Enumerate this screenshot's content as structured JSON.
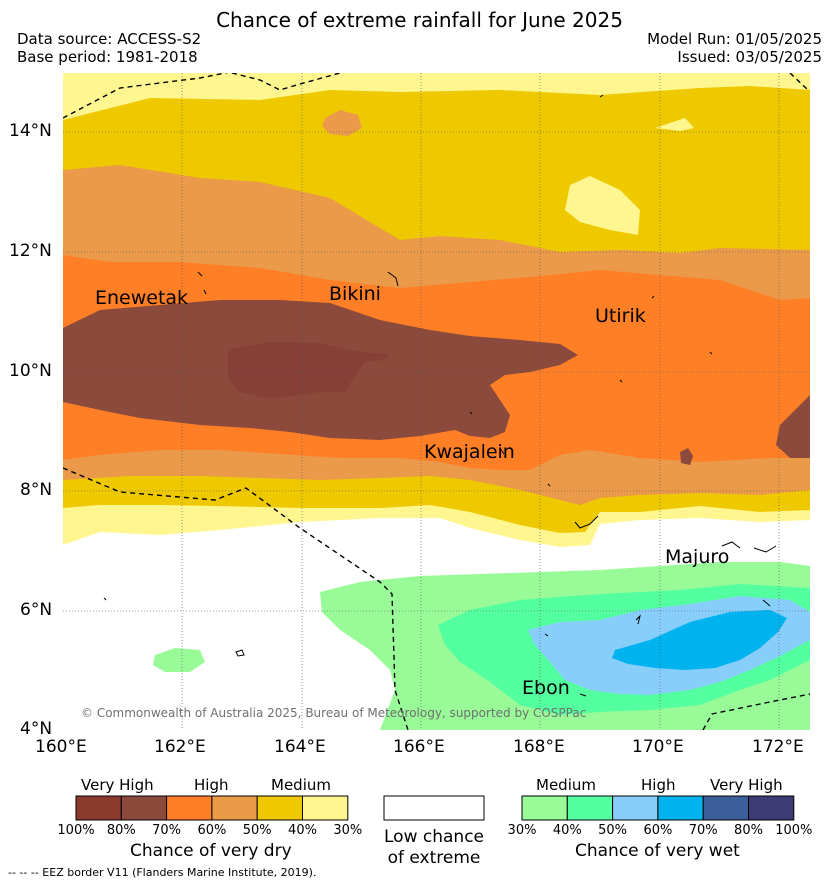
{
  "title": "Chance of extreme rainfall for June 2025",
  "header": {
    "data_source": "Data source: ACCESS-S2",
    "base_period": "Base period: 1981-2018",
    "model_run": "Model Run: 01/05/2025",
    "issued": "Issued: 03/05/2025"
  },
  "axes": {
    "lat_labels": [
      "14°N",
      "12°N",
      "10°N",
      "8°N",
      "6°N",
      "4°N"
    ],
    "lon_labels": [
      "160°E",
      "162°E",
      "164°E",
      "166°E",
      "168°E",
      "170°E",
      "172°E"
    ]
  },
  "places": {
    "enewetak": "Enewetak",
    "bikini": "Bikini",
    "utirik": "Utirik",
    "kwajalein": "Kwajalein",
    "majuro": "Majuro",
    "ebon": "Ebon"
  },
  "copyright": "© Commonwealth of Australia 2025, Bureau of Meteorology, supported by COSPPac",
  "colorbar_dry": {
    "group_labels": [
      "Very High",
      "High",
      "Medium"
    ],
    "ticks": [
      "100%",
      "80%",
      "70%",
      "60%",
      "50%",
      "40%",
      "30%"
    ],
    "colors": [
      "#8b3a2e",
      "#8b4a3c",
      "#ff7f27",
      "#eb9a4a",
      "#eec900",
      "#fff68f"
    ],
    "title": "Chance of very dry"
  },
  "colorbar_low": {
    "title_line1": "Low chance",
    "title_line2": "of extreme",
    "color": "#ffffff"
  },
  "colorbar_wet": {
    "group_labels": [
      "Medium",
      "High",
      "Very High"
    ],
    "ticks": [
      "30%",
      "40%",
      "50%",
      "60%",
      "70%",
      "80%",
      "100%"
    ],
    "colors": [
      "#98fb98",
      "#54ff9f",
      "#87cefa",
      "#00b2ee",
      "#3a5f9a",
      "#3d3b73"
    ],
    "title": "Chance of very wet"
  },
  "footer": "--  --  -- EEZ border V11 (Flanders Marine Institute, 2019)."
}
